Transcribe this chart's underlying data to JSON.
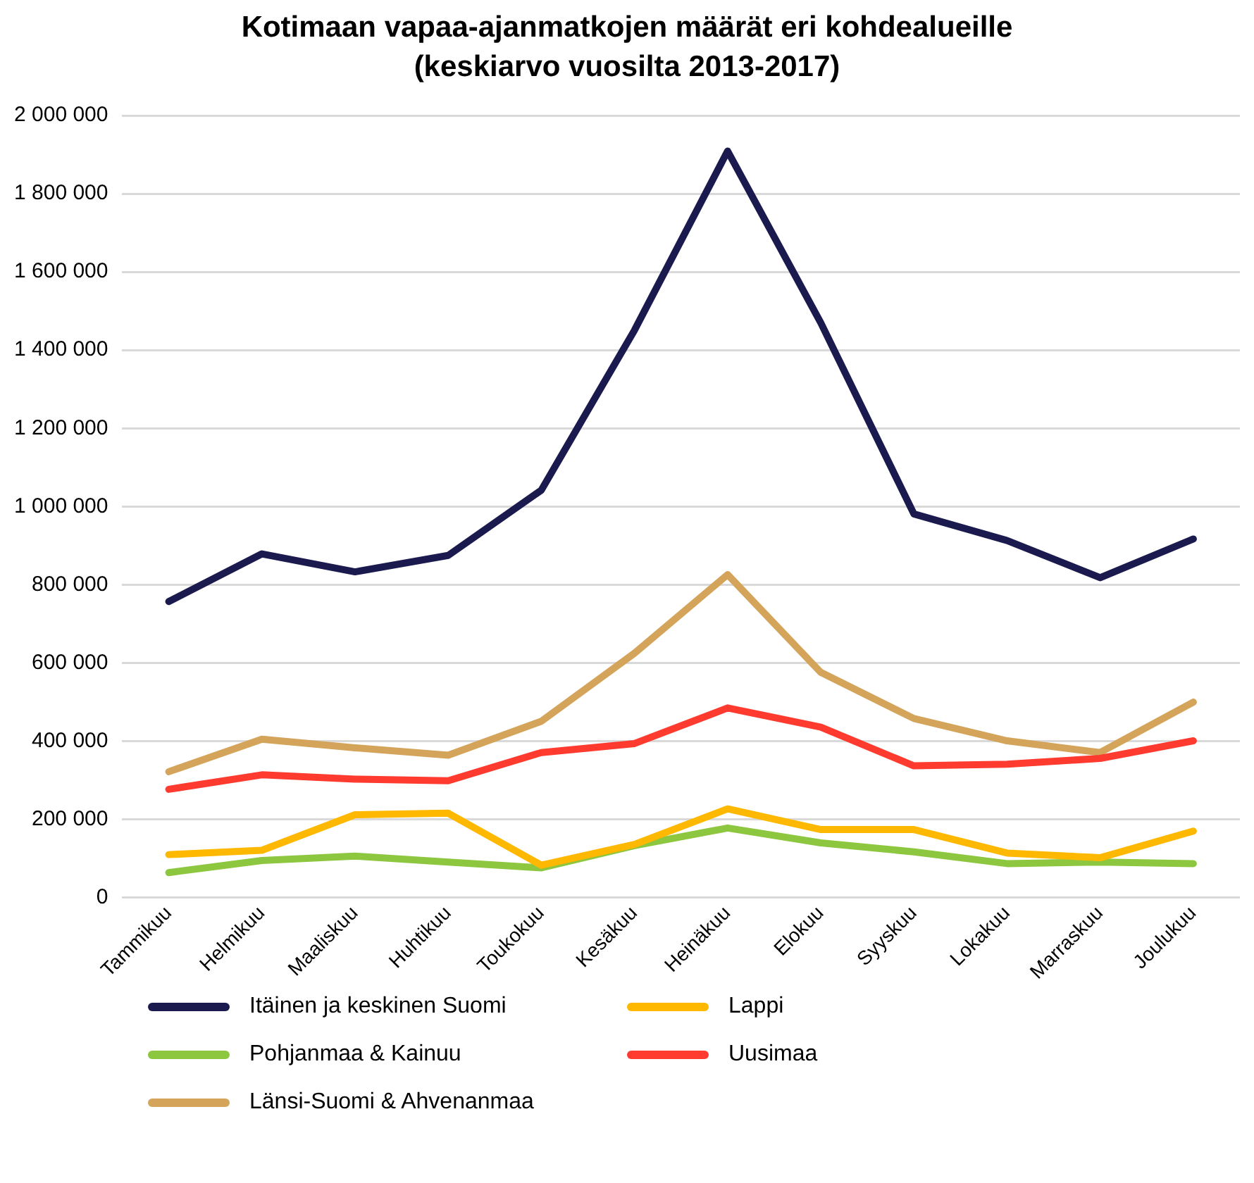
{
  "chart_data": {
    "type": "line",
    "title": "Kotimaan vapaa-ajanmatkojen määrät eri kohdealueille",
    "subtitle": "(keskiarvo vuosilta 2013-2017)",
    "categories": [
      "Tammikuu",
      "Helmikuu",
      "Maaliskuu",
      "Huhtikuu",
      "Toukokuu",
      "Kesäkuu",
      "Heinäkuu",
      "Elokuu",
      "Syyskuu",
      "Lokakuu",
      "Marraskuu",
      "Joulukuu"
    ],
    "series": [
      {
        "name": "Itäinen ja keskinen Suomi",
        "color": "#1b1a4f",
        "values": [
          757000,
          879000,
          833000,
          875000,
          1042000,
          1451000,
          1909000,
          1470000,
          981000,
          913000,
          818000,
          917000
        ]
      },
      {
        "name": "Lappi",
        "color": "#ffb800",
        "values": [
          110000,
          121000,
          212000,
          216000,
          83000,
          136000,
          227000,
          174000,
          174000,
          114000,
          102000,
          170000
        ]
      },
      {
        "name": "Pohjanmaa & Kainuu",
        "color": "#8dc63f",
        "values": [
          64000,
          95000,
          106000,
          91000,
          76000,
          133000,
          178000,
          140000,
          117000,
          87000,
          91000,
          87000
        ]
      },
      {
        "name": "Uusimaa",
        "color": "#ff3b30",
        "values": [
          277000,
          314000,
          303000,
          299000,
          371000,
          394000,
          485000,
          436000,
          337000,
          341000,
          356000,
          401000
        ]
      },
      {
        "name": "Länsi-Suomi & Ahvenanmaa",
        "color": "#d4a45a",
        "values": [
          322000,
          405000,
          383000,
          364000,
          451000,
          625000,
          826000,
          576000,
          458000,
          401000,
          371000,
          500000
        ]
      }
    ],
    "ylim": [
      0,
      2000000
    ],
    "yticks": [
      0,
      {
        "value": 200000,
        "label": "200 000"
      },
      {
        "value": 400000,
        "label": "400 000"
      },
      {
        "value": 600000,
        "label": "600 000"
      },
      {
        "value": 800000,
        "label": "800 000"
      },
      {
        "value": 1000000,
        "label": "1 000 000"
      },
      {
        "value": 1200000,
        "label": "1 200 000"
      },
      {
        "value": 1400000,
        "label": "1 400 000"
      },
      {
        "value": 1600000,
        "label": "1 600 000"
      },
      {
        "value": 1800000,
        "label": "1 800 000"
      },
      {
        "value": 2000000,
        "label": "2 000 000"
      }
    ],
    "grid": "y",
    "legend": "bottom",
    "marker": "none",
    "line_style": "solid"
  }
}
